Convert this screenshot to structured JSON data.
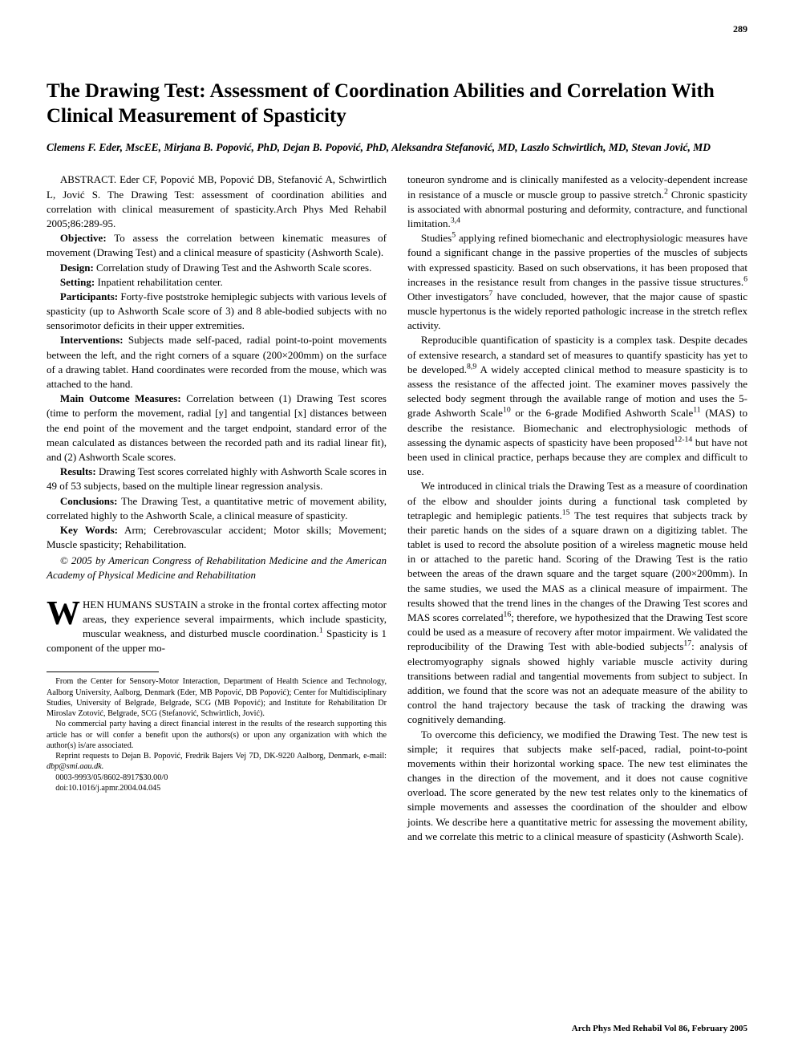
{
  "page_number": "289",
  "title": "The Drawing Test: Assessment of Coordination Abilities and Correlation With Clinical Measurement of Spasticity",
  "authors": "Clemens F. Eder, MscEE, Mirjana B. Popović, PhD, Dejan B. Popović, PhD, Aleksandra Stefanović, MD, Laszlo Schwirtlich, MD, Stevan Jović, MD",
  "abstract_citation": "ABSTRACT. Eder CF, Popović MB, Popović DB, Stefanović A, Schwirtlich L, Jović S. The Drawing Test: assessment of coordination abilities and correlation with clinical measurement of spasticity.Arch Phys Med Rehabil 2005;86:289-95.",
  "sections": {
    "objective": {
      "label": "Objective:",
      "text": " To assess the correlation between kinematic measures of movement (Drawing Test) and a clinical measure of spasticity (Ashworth Scale)."
    },
    "design": {
      "label": "Design:",
      "text": " Correlation study of Drawing Test and the Ashworth Scale scores."
    },
    "setting": {
      "label": "Setting:",
      "text": " Inpatient rehabilitation center."
    },
    "participants": {
      "label": "Participants:",
      "text": " Forty-five poststroke hemiplegic subjects with various levels of spasticity (up to Ashworth Scale score of 3) and 8 able-bodied subjects with no sensorimotor deficits in their upper extremities."
    },
    "interventions": {
      "label": "Interventions:",
      "text": " Subjects made self-paced, radial point-to-point movements between the left, and the right corners of a square (200×200mm) on the surface of a drawing tablet. Hand coordinates were recorded from the mouse, which was attached to the hand."
    },
    "main_outcome": {
      "label": "Main Outcome Measures:",
      "text": " Correlation between (1) Drawing Test scores (time to perform the movement, radial [y] and tangential [x] distances between the end point of the movement and the target endpoint, standard error of the mean calculated as distances between the recorded path and its radial linear fit), and (2) Ashworth Scale scores."
    },
    "results": {
      "label": "Results:",
      "text": " Drawing Test scores correlated highly with Ashworth Scale scores in 49 of 53 subjects, based on the multiple linear regression analysis."
    },
    "conclusions": {
      "label": "Conclusions:",
      "text": " The Drawing Test, a quantitative metric of movement ability, correlated highly to the Ashworth Scale, a clinical measure of spasticity."
    },
    "keywords": {
      "label": "Key Words:",
      "text": " Arm; Cerebrovascular accident; Motor skills; Movement; Muscle spasticity; Rehabilitation."
    }
  },
  "copyright": "© 2005 by American Congress of Rehabilitation Medicine and the American Academy of Physical Medicine and Rehabilitation",
  "intro_dropcap_first": "W",
  "intro_dropcap_caps": "HEN HUMANS SUSTAIN",
  "intro_rest": " a stroke in the frontal cortex affecting motor areas, they experience several impairments, which include spasticity, muscular weakness, and disturbed muscle coordination.",
  "intro_tail": " Spasticity is 1 component of the upper mo-",
  "footnotes": {
    "affiliations": "From the Center for Sensory-Motor Interaction, Department of Health Science and Technology, Aalborg University, Aalborg, Denmark (Eder, MB Popović, DB Popović); Center for Multidisciplinary Studies, University of Belgrade, Belgrade, SCG (MB Popović); and Institute for Rehabilitation Dr Miroslav Zotović, Belgrade, SCG (Stefanović, Schwirtlich, Jović).",
    "disclosure": "No commercial party having a direct financial interest in the results of the research supporting this article has or will confer a benefit upon the authors(s) or upon any organization with which the author(s) is/are associated.",
    "reprints": "Reprint requests to Dejan B. Popović, Fredrik Bajers Vej 7D, DK-9220 Aalborg, Denmark, e-mail: ",
    "email": "dbp@smi.aau.dk.",
    "issn": "0003-9993/05/8602-8917$30.00/0",
    "doi": "doi:10.1016/j.apmr.2004.04.045"
  },
  "col2": {
    "p1_a": "toneuron syndrome and is clinically manifested as a velocity-dependent increase in resistance of a muscle or muscle group to passive stretch.",
    "p1_b": " Chronic spasticity is associated with abnormal posturing and deformity, contracture, and functional limitation.",
    "p2_a": "Studies",
    "p2_b": " applying refined biomechanic and electrophysiologic measures have found a significant change in the passive properties of the muscles of subjects with expressed spasticity. Based on such observations, it has been proposed that increases in the resistance result from changes in the passive tissue structures.",
    "p2_c": " Other investigators",
    "p2_d": " have concluded, however, that the major cause of spastic muscle hypertonus is the widely reported pathologic increase in the stretch reflex activity.",
    "p3_a": "Reproducible quantification of spasticity is a complex task. Despite decades of extensive research, a standard set of measures to quantify spasticity has yet to be developed.",
    "p3_b": " A widely accepted clinical method to measure spasticity is to assess the resistance of the affected joint. The examiner moves passively the selected body segment through the available range of motion and uses the 5-grade Ashworth Scale",
    "p3_c": " or the 6-grade Modified Ashworth Scale",
    "p3_d": " (MAS) to describe the resistance. Biomechanic and electrophysiologic methods of assessing the dynamic aspects of spasticity have been proposed",
    "p3_e": " but have not been used in clinical practice, perhaps because they are complex and difficult to use.",
    "p4_a": "We introduced in clinical trials the Drawing Test as a measure of coordination of the elbow and shoulder joints during a functional task completed by tetraplegic and hemiplegic patients.",
    "p4_b": " The test requires that subjects track by their paretic hands on the sides of a square drawn on a digitizing tablet. The tablet is used to record the absolute position of a wireless magnetic mouse held in or attached to the paretic hand. Scoring of the Drawing Test is the ratio between the areas of the drawn square and the target square (200×200mm). In the same studies, we used the MAS as a clinical measure of impairment. The results showed that the trend lines in the changes of the Drawing Test scores and MAS scores correlated",
    "p4_c": "; therefore, we hypothesized that the Drawing Test score could be used as a measure of recovery after motor impairment. We validated the reproducibility of the Drawing Test with able-bodied subjects",
    "p4_d": ": analysis of electromyography signals showed highly variable muscle activity during transitions between radial and tangential movements from subject to subject. In addition, we found that the score was not an adequate measure of the ability to control the hand trajectory because the task of tracking the drawing was cognitively demanding.",
    "p5": "To overcome this deficiency, we modified the Drawing Test. The new test is simple; it requires that subjects make self-paced, radial, point-to-point movements within their horizontal working space. The new test eliminates the changes in the direction of the movement, and it does not cause cognitive overload. The score generated by the new test relates only to the kinematics of simple movements and assesses the coordination of the shoulder and elbow joints. We describe here a quantitative metric for assessing the movement ability, and we correlate this metric to a clinical measure of spasticity (Ashworth Scale)."
  },
  "refs": {
    "r1": "1",
    "r2": "2",
    "r34": "3,4",
    "r5": "5",
    "r6": "6",
    "r7": "7",
    "r89": "8,9",
    "r10": "10",
    "r11": "11",
    "r1214": "12-14",
    "r15": "15",
    "r16": "16",
    "r17": "17"
  },
  "footer_citation": "Arch Phys Med Rehabil Vol 86, February 2005"
}
